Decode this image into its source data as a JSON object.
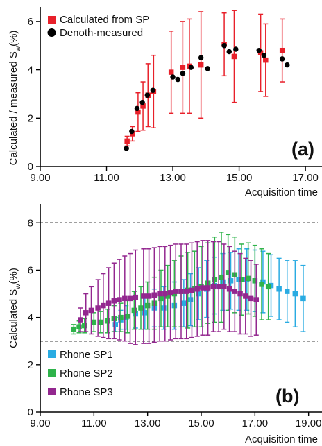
{
  "chart_data": [
    {
      "panel": "(a)",
      "type": "scatter",
      "title": "",
      "xlabel": "Acquisition time",
      "ylabel_main": "Calculated / measured S",
      "ylabel_sub": "w",
      "ylabel_unit": "(%)",
      "xlim": [
        9.0,
        17.5
      ],
      "ylim": [
        0,
        6.6
      ],
      "xticks": [
        9.0,
        11.0,
        13.0,
        15.0,
        17.0
      ],
      "xtick_labels": [
        "9.00",
        "11.00",
        "13.00",
        "15.00",
        "17.00"
      ],
      "yticks": [
        0,
        2,
        4,
        6
      ],
      "ytick_labels": [
        "0",
        "2",
        "4",
        "6"
      ],
      "legend_position": "top-left",
      "series": [
        {
          "name": "Calculated from SP",
          "color": "#e8202a",
          "marker": "square",
          "x": [
            11.62,
            11.78,
            11.95,
            12.1,
            12.25,
            12.42,
            12.95,
            13.3,
            13.5,
            13.85,
            14.55,
            14.85,
            15.65,
            15.8,
            16.3
          ],
          "y": [
            1.05,
            1.35,
            2.25,
            2.5,
            2.95,
            3.1,
            3.9,
            4.1,
            4.15,
            4.2,
            5.05,
            4.55,
            4.7,
            4.4,
            4.8
          ],
          "err": [
            0.2,
            0.3,
            0.8,
            1.0,
            1.3,
            1.5,
            1.7,
            1.9,
            1.95,
            2.2,
            1.3,
            1.9,
            1.6,
            1.5,
            1.3
          ]
        },
        {
          "name": "Denoth-measured",
          "color": "#000000",
          "marker": "circle",
          "x": [
            11.6,
            11.76,
            11.92,
            12.08,
            12.23,
            12.4,
            13.0,
            13.15,
            13.3,
            13.55,
            13.85,
            14.05,
            14.55,
            14.7,
            14.9,
            15.6,
            15.75,
            16.3,
            16.45
          ],
          "y": [
            0.75,
            1.45,
            2.4,
            2.65,
            2.95,
            3.15,
            3.7,
            3.6,
            3.85,
            4.1,
            4.5,
            4.05,
            5.0,
            4.75,
            4.85,
            4.8,
            4.6,
            4.45,
            4.2
          ]
        }
      ]
    },
    {
      "panel": "(b)",
      "type": "scatter",
      "title": "",
      "xlabel": "Acquisition time",
      "ylabel_main": "Calculated S",
      "ylabel_sub": "w",
      "ylabel_unit": "(%)",
      "xlim": [
        9.0,
        19.5
      ],
      "ylim": [
        0,
        8.8
      ],
      "xticks": [
        9.0,
        11.0,
        13.0,
        15.0,
        17.0,
        19.0
      ],
      "xtick_labels": [
        "9.00",
        "11.00",
        "13.00",
        "15.00",
        "17.00",
        "19.00"
      ],
      "yticks": [
        0,
        2,
        4,
        6,
        8
      ],
      "ytick_labels": [
        "0",
        "2",
        "4",
        "6",
        "8"
      ],
      "hlines": [
        8,
        3
      ],
      "legend_position": "bottom-left",
      "series": [
        {
          "name": "Rhone SP1",
          "color": "#29abe2",
          "marker": "square",
          "x": [
            11.8,
            12.0,
            12.2,
            12.55,
            12.9,
            13.25,
            13.6,
            14.0,
            14.35,
            14.6,
            14.9,
            15.2,
            15.5,
            15.8,
            16.1,
            16.4,
            16.7,
            17.0,
            17.3,
            17.6,
            17.9,
            18.2,
            18.5,
            18.8
          ],
          "y": [
            3.7,
            3.9,
            4.0,
            4.15,
            4.2,
            4.4,
            4.4,
            4.5,
            4.6,
            4.75,
            5.0,
            5.2,
            5.35,
            5.5,
            5.55,
            5.6,
            5.6,
            5.55,
            5.5,
            5.35,
            5.2,
            5.1,
            5.0,
            4.8
          ],
          "err": [
            0.3,
            0.4,
            0.5,
            0.6,
            0.7,
            0.8,
            0.9,
            1.0,
            1.0,
            1.1,
            1.1,
            1.2,
            1.2,
            1.2,
            1.2,
            1.3,
            1.3,
            1.3,
            1.3,
            1.3,
            1.3,
            1.3,
            1.4,
            1.4
          ]
        },
        {
          "name": "Rhone SP2",
          "color": "#2eb34a",
          "marker": "square",
          "x": [
            10.25,
            10.45,
            10.65,
            11.0,
            11.25,
            11.5,
            11.75,
            12.0,
            12.25,
            12.5,
            12.75,
            13.0,
            13.25,
            13.5,
            13.75,
            14.0,
            14.25,
            14.5,
            14.75,
            15.0,
            15.25,
            15.5,
            15.75,
            16.0,
            16.25,
            16.5,
            16.75,
            17.0,
            17.25,
            17.5
          ],
          "y": [
            3.5,
            3.6,
            3.65,
            3.8,
            3.8,
            3.85,
            3.95,
            4.0,
            4.05,
            4.3,
            4.4,
            4.5,
            4.6,
            4.8,
            4.9,
            5.0,
            5.1,
            5.15,
            5.2,
            5.3,
            5.45,
            5.6,
            5.7,
            5.9,
            5.8,
            5.6,
            5.65,
            5.55,
            5.4,
            5.3
          ],
          "err": [
            0.2,
            0.25,
            0.3,
            0.4,
            0.45,
            0.5,
            0.55,
            0.6,
            0.7,
            0.8,
            0.9,
            1.0,
            1.1,
            1.2,
            1.3,
            1.4,
            1.5,
            1.6,
            1.6,
            1.7,
            1.7,
            1.8,
            1.9,
            1.6,
            1.6,
            1.5,
            1.5,
            1.5,
            1.5,
            1.4
          ]
        },
        {
          "name": "Rhone SP3",
          "color": "#93278f",
          "marker": "square",
          "x": [
            10.5,
            10.7,
            10.9,
            11.15,
            11.35,
            11.55,
            11.75,
            11.95,
            12.15,
            12.35,
            12.55,
            12.85,
            13.05,
            13.25,
            13.45,
            13.65,
            13.85,
            14.05,
            14.25,
            14.45,
            14.65,
            14.85,
            15.05,
            15.25,
            15.45,
            15.65,
            15.85,
            16.05,
            16.25,
            16.45,
            16.65,
            16.85,
            17.05
          ],
          "y": [
            3.9,
            4.2,
            4.3,
            4.4,
            4.5,
            4.6,
            4.7,
            4.75,
            4.8,
            4.8,
            4.85,
            4.9,
            4.9,
            4.95,
            5.0,
            5.0,
            5.05,
            5.1,
            5.1,
            5.1,
            5.15,
            5.2,
            5.25,
            5.25,
            5.3,
            5.3,
            5.3,
            5.2,
            5.1,
            5.0,
            4.9,
            4.8,
            4.75
          ],
          "err": [
            0.5,
            0.8,
            1.0,
            1.2,
            1.35,
            1.5,
            1.6,
            1.7,
            1.8,
            1.9,
            2.0,
            2.0,
            2.0,
            2.0,
            2.0,
            2.0,
            2.0,
            2.0,
            2.0,
            2.0,
            2.0,
            2.0,
            2.0,
            2.0,
            1.9,
            1.9,
            1.8,
            1.8,
            1.7,
            1.7,
            1.6,
            1.6,
            1.5
          ]
        }
      ]
    }
  ]
}
